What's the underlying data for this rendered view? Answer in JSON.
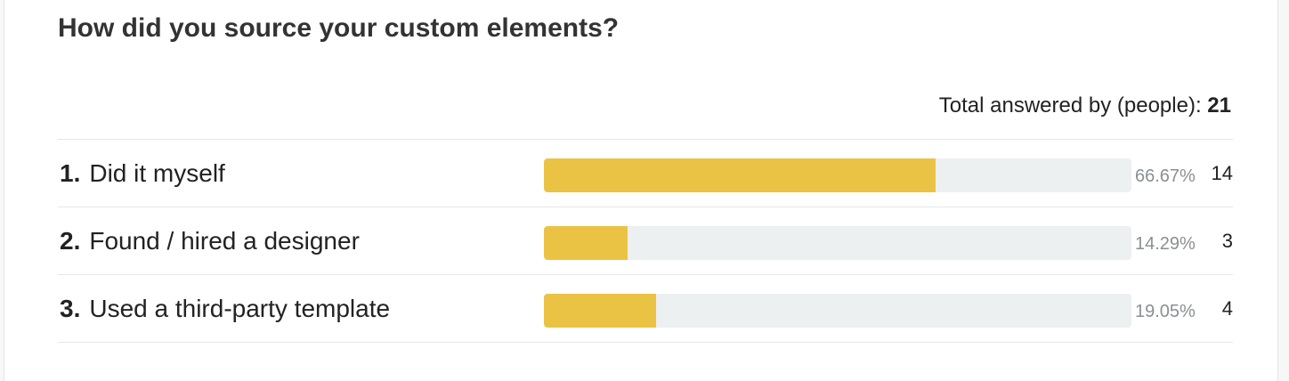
{
  "question": {
    "title": "How did you source your custom elements?"
  },
  "total": {
    "label": "Total answered by (people):",
    "value": "21"
  },
  "colors": {
    "bar_fill": "#ebc344",
    "bar_track": "#edf0f0"
  },
  "chart_data": {
    "type": "bar",
    "orientation": "horizontal",
    "title": "How did you source your custom elements?",
    "xlim": [
      0,
      100
    ],
    "categories": [
      "Did it myself",
      "Found / hired a designer",
      "Used a third-party template"
    ],
    "rows": [
      {
        "number": "1.",
        "label": "Did it myself",
        "percent": 66.67,
        "percent_label": "66.67%",
        "count": "14"
      },
      {
        "number": "2.",
        "label": "Found / hired a designer",
        "percent": 14.29,
        "percent_label": "14.29%",
        "count": "3"
      },
      {
        "number": "3.",
        "label": "Used a third-party template",
        "percent": 19.05,
        "percent_label": "19.05%",
        "count": "4"
      }
    ]
  }
}
